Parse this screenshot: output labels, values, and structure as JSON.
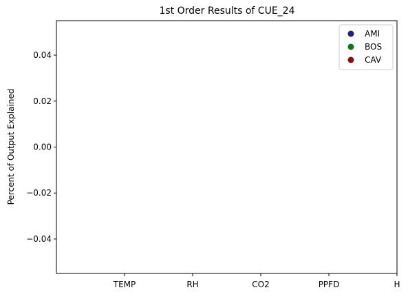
{
  "chart_data": {
    "type": "scatter",
    "title": "1st Order Results of CUE_24",
    "xlabel": "",
    "ylabel": "Percent of Output Explained",
    "categories": [
      "TEMP",
      "RH",
      "CO2",
      "PPFD",
      "H"
    ],
    "ylim": [
      -0.055,
      0.055
    ],
    "yticks": [
      -0.04,
      -0.02,
      0.0,
      0.02,
      0.04
    ],
    "ytick_labels": [
      "−0.04",
      "−0.02",
      "0.00",
      "0.02",
      "0.04"
    ],
    "grid": false,
    "legend_position": "top-right",
    "series": [
      {
        "name": "AMI",
        "color": "#221c8c",
        "values": []
      },
      {
        "name": "BOS",
        "color": "#0a7a0a",
        "values": []
      },
      {
        "name": "CAV",
        "color": "#8a0c0c",
        "values": []
      }
    ]
  }
}
